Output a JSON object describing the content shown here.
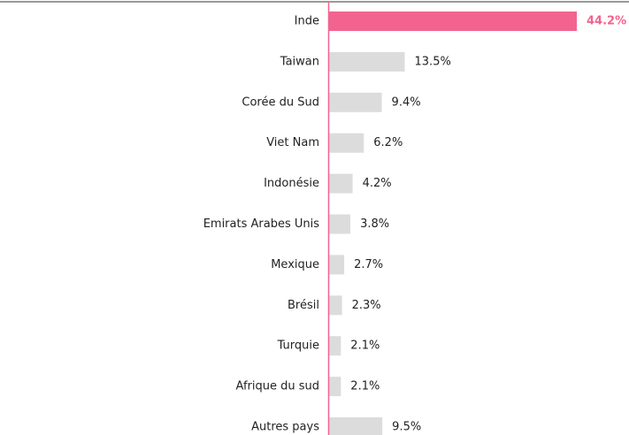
{
  "chart_data": {
    "type": "bar",
    "orientation": "horizontal",
    "categories": [
      "Inde",
      "Taiwan",
      "Corée du Sud",
      "Viet Nam",
      "Indonésie",
      "Emirats Arabes Unis",
      "Mexique",
      "Brésil",
      "Turquie",
      "Afrique du sud",
      "Autres pays"
    ],
    "values": [
      44.2,
      13.5,
      9.4,
      6.2,
      4.2,
      3.8,
      2.7,
      2.3,
      2.1,
      2.1,
      9.5
    ],
    "value_labels": [
      "44.2%",
      "13.5%",
      "9.4%",
      "6.2%",
      "4.2%",
      "3.8%",
      "2.7%",
      "2.3%",
      "2.1%",
      "2.1%",
      "9.5%"
    ],
    "colors": [
      "#f2648f",
      "#dcdcdc",
      "#dcdcdc",
      "#dcdcdc",
      "#dcdcdc",
      "#dcdcdc",
      "#dcdcdc",
      "#dcdcdc",
      "#dcdcdc",
      "#dcdcdc",
      "#dcdcdc"
    ],
    "axis_color": "#f2648f"
  }
}
